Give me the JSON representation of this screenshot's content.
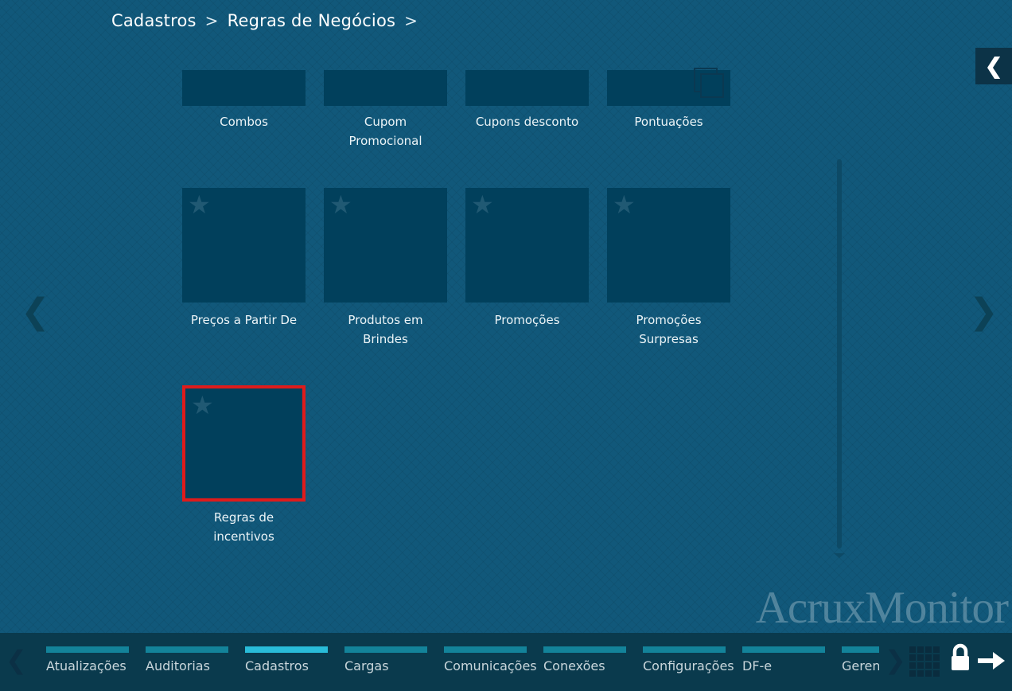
{
  "breadcrumb": {
    "items": [
      "Cadastros",
      "Regras de Negócios"
    ],
    "separator": ">"
  },
  "watermark": "AcruxMonitor",
  "grid": {
    "row1": [
      {
        "id": "combos",
        "label": "Combos",
        "label_lines": [
          "Combos"
        ],
        "icon": "none",
        "partial": true
      },
      {
        "id": "cupom-promocional",
        "label": "Cupom Promocional",
        "label_lines": [
          "Cupom",
          "Promocional"
        ],
        "icon": "none",
        "partial": true
      },
      {
        "id": "cupons-desconto",
        "label": "Cupons desconto",
        "label_lines": [
          "Cupons desconto"
        ],
        "icon": "none",
        "partial": true
      },
      {
        "id": "pontuacoes",
        "label": "Pontuações",
        "label_lines": [
          "Pontuações"
        ],
        "icon": "stacked-squares",
        "partial": true
      }
    ],
    "row2": [
      {
        "id": "precos-a-partir-de",
        "label": "Preços a Partir De",
        "label_lines": [
          "Preços a Partir De"
        ],
        "icon": "star"
      },
      {
        "id": "produtos-em-brindes",
        "label": "Produtos em Brindes",
        "label_lines": [
          "Produtos em",
          "Brindes"
        ],
        "icon": "star"
      },
      {
        "id": "promocoes",
        "label": "Promoções",
        "label_lines": [
          "Promoções"
        ],
        "icon": "star"
      },
      {
        "id": "promocoes-surpresas",
        "label": "Promoções Surpresas",
        "label_lines": [
          "Promoções",
          "Surpresas"
        ],
        "icon": "star"
      }
    ],
    "row3": [
      {
        "id": "regras-de-incentivos",
        "label": "Regras de incentivos",
        "label_lines": [
          "Regras de",
          "incentivos"
        ],
        "icon": "star",
        "selected": true
      }
    ]
  },
  "nav": {
    "collapse_glyph": "❮",
    "prev_glyph": "❮",
    "next_glyph": "❯"
  },
  "tabbar": {
    "active": "Cadastros",
    "tabs": [
      {
        "label": "Atualizações"
      },
      {
        "label": "Auditorias"
      },
      {
        "label": "Cadastros",
        "active": true
      },
      {
        "label": "Cargas"
      },
      {
        "label": "Comunicações"
      },
      {
        "label": "Conexões"
      },
      {
        "label": "Configurações"
      },
      {
        "label": "DF-e"
      },
      {
        "label": "Geren",
        "truncated": true
      }
    ]
  },
  "icons": {
    "collapse": "chevron-left",
    "carousel_prev": "chevron-left",
    "carousel_next": "chevron-right",
    "tabs_prev": "chevron-left",
    "tabs_next": "chevron-right",
    "apps": "grid",
    "lock": "lock",
    "forward": "arrow-right",
    "tile_badge": "star",
    "pontuacoes_badge": "stacked-squares"
  },
  "colors": {
    "background": "#11587a",
    "tile": "#01405c",
    "selected_border": "#df1b1b",
    "tab_bar_normal": "#13839a",
    "tab_bar_active": "#29bcd9",
    "tabbar_background": "#0a3a4d",
    "collapse_button_background": "#0c3347",
    "watermark_text": "rgba(255,255,255,0.27)"
  }
}
